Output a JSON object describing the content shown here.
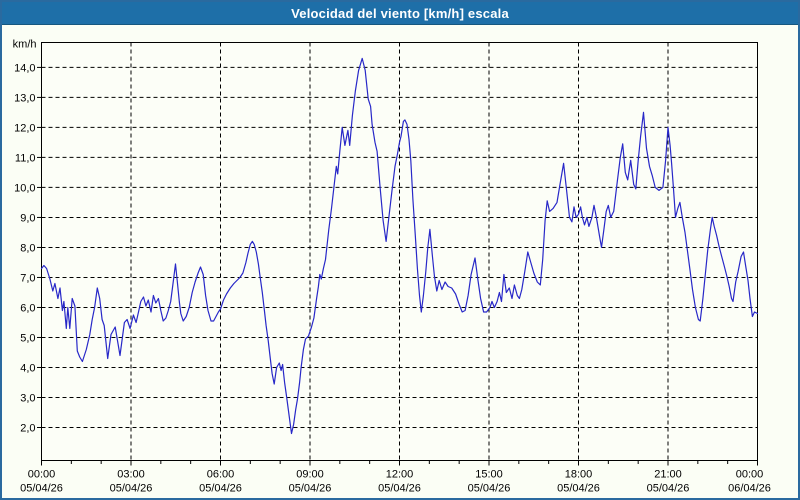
{
  "window": {
    "title": "Velocidad del viento [km/h] escala"
  },
  "colors": {
    "titlebar": "#1e6fa8",
    "frame": "#2a6a9f",
    "background": "#fbfef5",
    "plot_background": "#fcfef7",
    "grid": "#000000",
    "axis": "#000000",
    "line": "#2828c8",
    "title_text": "#ffffff",
    "label_text": "#000000"
  },
  "chart_data": {
    "type": "line",
    "title": "Velocidad del viento [km/h] escala",
    "ylabel": "km/h",
    "xlabel": "",
    "grid": "dashed-black",
    "legend": "none",
    "xlim": [
      0,
      24
    ],
    "ylim": [
      0.9,
      14.83
    ],
    "y_ticks": [
      {
        "value": 14,
        "label": "14,0"
      },
      {
        "value": 13,
        "label": "13,0"
      },
      {
        "value": 12,
        "label": "12,0"
      },
      {
        "value": 11,
        "label": "11,0"
      },
      {
        "value": 10,
        "label": "10,0"
      },
      {
        "value": 9,
        "label": "9,0"
      },
      {
        "value": 8,
        "label": "8,0"
      },
      {
        "value": 7,
        "label": "7,0"
      },
      {
        "value": 6,
        "label": "6,0"
      },
      {
        "value": 5,
        "label": "5,0"
      },
      {
        "value": 4,
        "label": "4,0"
      },
      {
        "value": 3,
        "label": "3,0"
      },
      {
        "value": 2,
        "label": "2,0"
      }
    ],
    "x_ticks": [
      {
        "hour": 0,
        "time": "00:00",
        "date": "05/04/26"
      },
      {
        "hour": 3,
        "time": "03:00",
        "date": "05/04/26"
      },
      {
        "hour": 6,
        "time": "06:00",
        "date": "05/04/26"
      },
      {
        "hour": 9,
        "time": "09:00",
        "date": "05/04/26"
      },
      {
        "hour": 12,
        "time": "12:00",
        "date": "05/04/26"
      },
      {
        "hour": 15,
        "time": "15:00",
        "date": "05/04/26"
      },
      {
        "hour": 18,
        "time": "18:00",
        "date": "05/04/26"
      },
      {
        "hour": 21,
        "time": "21:00",
        "date": "05/04/26"
      },
      {
        "hour": 24,
        "time": "00:00",
        "date": "06/04/26"
      }
    ],
    "minor_tick_every_hours": 1,
    "series": [
      {
        "name": "Velocidad del viento",
        "units": "km/h",
        "color": "#2828c8",
        "points": [
          [
            0,
            7.3
          ],
          [
            0.08,
            7.4
          ],
          [
            0.17,
            7.3
          ],
          [
            0.28,
            6.95
          ],
          [
            0.38,
            6.55
          ],
          [
            0.45,
            6.8
          ],
          [
            0.55,
            6.3
          ],
          [
            0.62,
            6.65
          ],
          [
            0.7,
            5.9
          ],
          [
            0.75,
            6.2
          ],
          [
            0.83,
            5.3
          ],
          [
            0.88,
            6.0
          ],
          [
            0.95,
            5.3
          ],
          [
            1.03,
            6.3
          ],
          [
            1.12,
            6.05
          ],
          [
            1.2,
            4.55
          ],
          [
            1.28,
            4.35
          ],
          [
            1.37,
            4.2
          ],
          [
            1.5,
            4.6
          ],
          [
            1.62,
            5.1
          ],
          [
            1.7,
            5.6
          ],
          [
            1.78,
            6.0
          ],
          [
            1.87,
            6.65
          ],
          [
            1.95,
            6.3
          ],
          [
            2.03,
            5.6
          ],
          [
            2.1,
            5.4
          ],
          [
            2.22,
            4.3
          ],
          [
            2.33,
            5.1
          ],
          [
            2.47,
            5.35
          ],
          [
            2.63,
            4.4
          ],
          [
            2.78,
            5.5
          ],
          [
            2.87,
            5.6
          ],
          [
            2.97,
            5.3
          ],
          [
            3.08,
            5.75
          ],
          [
            3.17,
            5.5
          ],
          [
            3.25,
            5.85
          ],
          [
            3.33,
            6.2
          ],
          [
            3.42,
            6.35
          ],
          [
            3.5,
            6.05
          ],
          [
            3.58,
            6.25
          ],
          [
            3.67,
            5.85
          ],
          [
            3.75,
            6.4
          ],
          [
            3.83,
            6.15
          ],
          [
            3.92,
            6.3
          ],
          [
            4.0,
            5.9
          ],
          [
            4.08,
            5.55
          ],
          [
            4.17,
            5.65
          ],
          [
            4.25,
            5.9
          ],
          [
            4.33,
            6.2
          ],
          [
            4.42,
            6.9
          ],
          [
            4.49,
            7.45
          ],
          [
            4.55,
            6.9
          ],
          [
            4.62,
            6.2
          ],
          [
            4.67,
            5.8
          ],
          [
            4.75,
            5.55
          ],
          [
            4.85,
            5.7
          ],
          [
            4.95,
            6.0
          ],
          [
            5.05,
            6.5
          ],
          [
            5.15,
            6.85
          ],
          [
            5.25,
            7.15
          ],
          [
            5.33,
            7.35
          ],
          [
            5.42,
            7.1
          ],
          [
            5.5,
            6.4
          ],
          [
            5.58,
            5.9
          ],
          [
            5.68,
            5.55
          ],
          [
            5.77,
            5.55
          ],
          [
            5.85,
            5.7
          ],
          [
            5.93,
            5.85
          ],
          [
            6.0,
            5.95
          ],
          [
            6.1,
            6.25
          ],
          [
            6.2,
            6.45
          ],
          [
            6.33,
            6.65
          ],
          [
            6.45,
            6.8
          ],
          [
            6.55,
            6.9
          ],
          [
            6.65,
            7.0
          ],
          [
            6.75,
            7.15
          ],
          [
            6.85,
            7.5
          ],
          [
            6.92,
            7.8
          ],
          [
            7.0,
            8.1
          ],
          [
            7.07,
            8.2
          ],
          [
            7.13,
            8.1
          ],
          [
            7.2,
            7.85
          ],
          [
            7.27,
            7.45
          ],
          [
            7.33,
            7.0
          ],
          [
            7.4,
            6.5
          ],
          [
            7.47,
            5.9
          ],
          [
            7.53,
            5.4
          ],
          [
            7.6,
            4.9
          ],
          [
            7.67,
            4.3
          ],
          [
            7.73,
            3.8
          ],
          [
            7.8,
            3.45
          ],
          [
            7.88,
            4.0
          ],
          [
            7.97,
            4.15
          ],
          [
            8.03,
            3.9
          ],
          [
            8.08,
            4.1
          ],
          [
            8.15,
            3.5
          ],
          [
            8.22,
            3.0
          ],
          [
            8.3,
            2.4
          ],
          [
            8.38,
            1.8
          ],
          [
            8.45,
            2.1
          ],
          [
            8.52,
            2.6
          ],
          [
            8.58,
            2.95
          ],
          [
            8.65,
            3.5
          ],
          [
            8.7,
            4.0
          ],
          [
            8.78,
            4.6
          ],
          [
            8.85,
            4.95
          ],
          [
            8.95,
            5.05
          ],
          [
            9.05,
            5.35
          ],
          [
            9.13,
            5.65
          ],
          [
            9.22,
            6.3
          ],
          [
            9.28,
            6.7
          ],
          [
            9.33,
            7.1
          ],
          [
            9.38,
            6.95
          ],
          [
            9.45,
            7.3
          ],
          [
            9.52,
            7.6
          ],
          [
            9.63,
            8.6
          ],
          [
            9.72,
            9.3
          ],
          [
            9.8,
            10.0
          ],
          [
            9.88,
            10.7
          ],
          [
            9.93,
            10.45
          ],
          [
            10.0,
            11.2
          ],
          [
            10.08,
            12.0
          ],
          [
            10.17,
            11.4
          ],
          [
            10.27,
            11.9
          ],
          [
            10.33,
            11.4
          ],
          [
            10.42,
            12.4
          ],
          [
            10.52,
            13.2
          ],
          [
            10.63,
            13.9
          ],
          [
            10.75,
            14.3
          ],
          [
            10.85,
            13.9
          ],
          [
            10.95,
            12.95
          ],
          [
            11.03,
            12.7
          ],
          [
            11.08,
            12.1
          ],
          [
            11.18,
            11.5
          ],
          [
            11.25,
            11.2
          ],
          [
            11.35,
            10.0
          ],
          [
            11.45,
            8.9
          ],
          [
            11.55,
            8.2
          ],
          [
            11.63,
            8.9
          ],
          [
            11.75,
            9.9
          ],
          [
            11.85,
            10.7
          ],
          [
            11.93,
            11.1
          ],
          [
            12.0,
            11.5
          ],
          [
            12.05,
            11.7
          ],
          [
            12.13,
            12.2
          ],
          [
            12.18,
            12.25
          ],
          [
            12.25,
            12.1
          ],
          [
            12.32,
            11.6
          ],
          [
            12.38,
            10.9
          ],
          [
            12.45,
            9.6
          ],
          [
            12.53,
            8.4
          ],
          [
            12.6,
            7.3
          ],
          [
            12.67,
            6.4
          ],
          [
            12.73,
            5.85
          ],
          [
            12.8,
            6.4
          ],
          [
            12.88,
            7.2
          ],
          [
            12.95,
            8.0
          ],
          [
            13.02,
            8.6
          ],
          [
            13.1,
            7.75
          ],
          [
            13.17,
            7.05
          ],
          [
            13.25,
            6.55
          ],
          [
            13.33,
            6.9
          ],
          [
            13.42,
            6.6
          ],
          [
            13.53,
            6.85
          ],
          [
            13.63,
            6.7
          ],
          [
            13.75,
            6.65
          ],
          [
            13.88,
            6.45
          ],
          [
            14.0,
            6.1
          ],
          [
            14.1,
            5.85
          ],
          [
            14.2,
            5.9
          ],
          [
            14.3,
            6.4
          ],
          [
            14.4,
            7.1
          ],
          [
            14.53,
            7.65
          ],
          [
            14.63,
            6.9
          ],
          [
            14.72,
            6.3
          ],
          [
            14.82,
            5.85
          ],
          [
            14.92,
            5.85
          ],
          [
            15.03,
            6.0
          ],
          [
            15.1,
            6.2
          ],
          [
            15.18,
            6.0
          ],
          [
            15.27,
            6.2
          ],
          [
            15.35,
            6.5
          ],
          [
            15.42,
            6.2
          ],
          [
            15.5,
            7.1
          ],
          [
            15.58,
            6.5
          ],
          [
            15.68,
            6.65
          ],
          [
            15.77,
            6.3
          ],
          [
            15.85,
            6.75
          ],
          [
            15.95,
            6.4
          ],
          [
            16.02,
            6.3
          ],
          [
            16.1,
            6.6
          ],
          [
            16.2,
            7.2
          ],
          [
            16.3,
            7.85
          ],
          [
            16.4,
            7.5
          ],
          [
            16.5,
            7.15
          ],
          [
            16.62,
            6.85
          ],
          [
            16.72,
            6.75
          ],
          [
            16.8,
            7.6
          ],
          [
            16.88,
            8.9
          ],
          [
            16.95,
            9.55
          ],
          [
            17.03,
            9.2
          ],
          [
            17.15,
            9.3
          ],
          [
            17.28,
            9.5
          ],
          [
            17.38,
            10.1
          ],
          [
            17.5,
            10.8
          ],
          [
            17.6,
            9.9
          ],
          [
            17.7,
            9.0
          ],
          [
            17.78,
            8.85
          ],
          [
            17.85,
            9.35
          ],
          [
            17.92,
            9.0
          ],
          [
            18.0,
            9.1
          ],
          [
            18.07,
            9.35
          ],
          [
            18.13,
            9.0
          ],
          [
            18.2,
            8.75
          ],
          [
            18.28,
            9.0
          ],
          [
            18.35,
            8.7
          ],
          [
            18.45,
            9.0
          ],
          [
            18.52,
            9.4
          ],
          [
            18.6,
            9.0
          ],
          [
            18.7,
            8.4
          ],
          [
            18.77,
            8.0
          ],
          [
            18.85,
            8.6
          ],
          [
            18.93,
            9.2
          ],
          [
            19.0,
            9.4
          ],
          [
            19.08,
            9.0
          ],
          [
            19.18,
            9.2
          ],
          [
            19.3,
            10.2
          ],
          [
            19.4,
            11.0
          ],
          [
            19.48,
            11.45
          ],
          [
            19.57,
            10.5
          ],
          [
            19.65,
            10.25
          ],
          [
            19.75,
            10.9
          ],
          [
            19.85,
            10.1
          ],
          [
            19.92,
            9.95
          ],
          [
            20.0,
            10.9
          ],
          [
            20.08,
            11.7
          ],
          [
            20.18,
            12.5
          ],
          [
            20.28,
            11.3
          ],
          [
            20.38,
            10.7
          ],
          [
            20.47,
            10.4
          ],
          [
            20.57,
            10.0
          ],
          [
            20.7,
            9.9
          ],
          [
            20.83,
            10.0
          ],
          [
            20.92,
            10.9
          ],
          [
            21.0,
            12.0
          ],
          [
            21.07,
            11.4
          ],
          [
            21.12,
            10.8
          ],
          [
            21.18,
            10.0
          ],
          [
            21.25,
            9.0
          ],
          [
            21.33,
            9.3
          ],
          [
            21.4,
            9.5
          ],
          [
            21.48,
            9.0
          ],
          [
            21.57,
            8.5
          ],
          [
            21.65,
            7.9
          ],
          [
            21.73,
            7.3
          ],
          [
            21.82,
            6.6
          ],
          [
            21.92,
            6.0
          ],
          [
            22.02,
            5.6
          ],
          [
            22.08,
            5.55
          ],
          [
            22.17,
            6.3
          ],
          [
            22.25,
            7.1
          ],
          [
            22.33,
            7.9
          ],
          [
            22.42,
            8.6
          ],
          [
            22.48,
            9.0
          ],
          [
            22.55,
            8.7
          ],
          [
            22.63,
            8.4
          ],
          [
            22.72,
            8.0
          ],
          [
            22.8,
            7.7
          ],
          [
            22.88,
            7.4
          ],
          [
            22.97,
            7.05
          ],
          [
            23.05,
            6.7
          ],
          [
            23.13,
            6.3
          ],
          [
            23.18,
            6.2
          ],
          [
            23.27,
            6.85
          ],
          [
            23.35,
            7.2
          ],
          [
            23.45,
            7.7
          ],
          [
            23.53,
            7.85
          ],
          [
            23.6,
            7.4
          ],
          [
            23.68,
            6.9
          ],
          [
            23.75,
            6.3
          ],
          [
            23.83,
            5.7
          ],
          [
            23.9,
            5.85
          ],
          [
            24.0,
            5.8
          ]
        ]
      }
    ]
  }
}
